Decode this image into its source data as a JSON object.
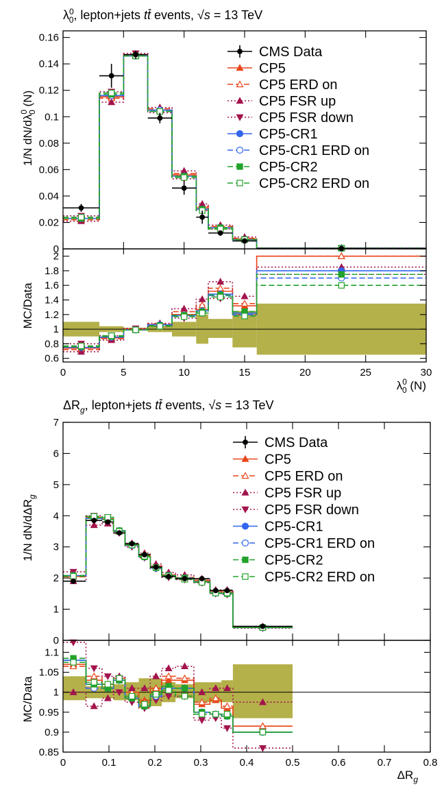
{
  "colors": {
    "data": "#000000",
    "cp5": "#e8471b",
    "fsr": "#a3144d",
    "cr1": "#3366ee",
    "cr2": "#22a22a",
    "band": "#b4b04a"
  },
  "legend": [
    {
      "key": "data",
      "label": "CMS Data"
    },
    {
      "key": "cp5",
      "label": "CP5"
    },
    {
      "key": "cp5_erd",
      "label": "CP5 ERD on"
    },
    {
      "key": "fsr_up",
      "label": "CP5 FSR up"
    },
    {
      "key": "fsr_down",
      "label": "CP5 FSR down"
    },
    {
      "key": "cr1",
      "label": "CP5-CR1"
    },
    {
      "key": "cr1_erd",
      "label": "CP5-CR1 ERD on"
    },
    {
      "key": "cr2",
      "label": "CP5-CR2"
    },
    {
      "key": "cr2_erd",
      "label": "CP5-CR2 ERD on"
    }
  ],
  "chart_data": [
    {
      "type": "line",
      "title": "λ₀⁰, lepton+jets tt̄ events, √s = 13 TeV",
      "title_parts": {
        "obs": "λ",
        "sup": "0",
        "sub": "0",
        "mid": ", lepton+jets ",
        "tt": "tt",
        "events": " events, ",
        "sqrt": "√",
        "s": "s",
        "energy": " = 13 TeV"
      },
      "ylabel": "1/N dN/dλ₀⁰ (N)",
      "ylabel_ratio": "MC/Data",
      "xlabel": "λ₀⁰ (N)",
      "xlabel_parts": {
        "obs": "λ",
        "sup": "0",
        "sub": "0",
        "unit": " (N)"
      },
      "ylabel_parts": {
        "pre": "1/N dN/dλ",
        "sup": "0",
        "sub": "0",
        "unit": " (N)"
      },
      "xlim": [
        0,
        30
      ],
      "ylim": [
        0,
        0.165
      ],
      "ratio_ylim": [
        0.55,
        2.1
      ],
      "x_ticks": [
        0,
        5,
        10,
        15,
        20,
        25,
        30
      ],
      "x_tick_labels": [
        "0",
        "5",
        "10",
        "15",
        "20",
        "25",
        "30"
      ],
      "y_ticks": [
        0,
        0.02,
        0.04,
        0.06,
        0.08,
        0.1,
        0.12,
        0.14,
        0.16
      ],
      "y_tick_labels": [
        "0",
        "0.02",
        "0.04",
        "0.06",
        "0.08",
        "0.1",
        "0.12",
        "0.14",
        "0.16"
      ],
      "ratio_ticks": [
        0.6,
        0.8,
        1,
        1.2,
        1.4,
        1.6,
        1.8,
        2
      ],
      "ratio_tick_labels": [
        "0.6",
        "0.8",
        "1",
        "1.2",
        "1.4",
        "1.6",
        "1.8",
        "2"
      ],
      "bin_edges": [
        0,
        3,
        5,
        7,
        9,
        11,
        12,
        14,
        16,
        30
      ],
      "data": {
        "x": [
          1.5,
          4,
          6,
          8,
          10,
          11.5,
          13,
          15,
          23
        ],
        "values": [
          0.031,
          0.131,
          0.147,
          0.099,
          0.046,
          0.024,
          0.012,
          0.006,
          0.0003
        ],
        "errors": [
          0.003,
          0.009,
          0.003,
          0.004,
          0.005,
          0.005,
          0.002,
          0.0015,
          0.0002
        ]
      },
      "series": [
        {
          "key": "cp5",
          "name": "CP5",
          "values": [
            0.023,
            0.115,
            0.147,
            0.105,
            0.056,
            0.031,
            0.016,
            0.0075,
            0.0006
          ],
          "ratio": [
            0.74,
            0.88,
            1.0,
            1.06,
            1.2,
            1.27,
            1.52,
            1.32,
            2.0
          ]
        },
        {
          "key": "cp5_erd",
          "name": "CP5 ERD on",
          "values": [
            0.022,
            0.114,
            0.147,
            0.106,
            0.057,
            0.032,
            0.017,
            0.008,
            0.0006
          ],
          "ratio": [
            0.72,
            0.87,
            1.0,
            1.07,
            1.24,
            1.33,
            1.56,
            1.35,
            2.0
          ]
        },
        {
          "key": "fsr_up",
          "name": "CP5 FSR up",
          "values": [
            0.021,
            0.111,
            0.146,
            0.107,
            0.059,
            0.034,
            0.018,
            0.009,
            0.0007
          ],
          "ratio": [
            0.69,
            0.85,
            0.99,
            1.08,
            1.28,
            1.41,
            1.65,
            1.45,
            1.85
          ]
        },
        {
          "key": "fsr_down",
          "name": "CP5 FSR down",
          "values": [
            0.025,
            0.119,
            0.148,
            0.103,
            0.053,
            0.029,
            0.015,
            0.007,
            0.0005
          ],
          "ratio": [
            0.8,
            0.91,
            1.01,
            1.04,
            1.15,
            1.22,
            1.42,
            1.2,
            1.75
          ]
        },
        {
          "key": "cr1",
          "name": "CP5-CR1",
          "values": [
            0.023,
            0.116,
            0.146,
            0.105,
            0.055,
            0.03,
            0.016,
            0.007,
            0.0005
          ],
          "ratio": [
            0.75,
            0.89,
            0.99,
            1.06,
            1.19,
            1.25,
            1.48,
            1.22,
            1.8
          ]
        },
        {
          "key": "cr1_erd",
          "name": "CP5-CR1 ERD on",
          "values": [
            0.023,
            0.116,
            0.146,
            0.105,
            0.055,
            0.03,
            0.016,
            0.007,
            0.0005
          ],
          "ratio": [
            0.76,
            0.89,
            0.99,
            1.05,
            1.18,
            1.24,
            1.46,
            1.2,
            1.7
          ]
        },
        {
          "key": "cr2",
          "name": "CP5-CR2",
          "values": [
            0.023,
            0.117,
            0.146,
            0.104,
            0.055,
            0.03,
            0.016,
            0.007,
            0.0005
          ],
          "ratio": [
            0.76,
            0.9,
            0.99,
            1.05,
            1.19,
            1.24,
            1.47,
            1.24,
            1.75
          ]
        },
        {
          "key": "cr2_erd",
          "name": "CP5-CR2 ERD on",
          "values": [
            0.024,
            0.118,
            0.146,
            0.104,
            0.054,
            0.029,
            0.015,
            0.007,
            0.0005
          ],
          "ratio": [
            0.77,
            0.91,
            0.99,
            1.04,
            1.17,
            1.22,
            1.44,
            1.18,
            1.6
          ]
        }
      ],
      "uncertainty_band": {
        "lo": [
          0.9,
          0.96,
          0.98,
          0.96,
          0.9,
          0.8,
          0.88,
          0.75,
          0.65
        ],
        "hi": [
          1.1,
          1.04,
          1.02,
          1.04,
          1.1,
          1.2,
          1.14,
          1.25,
          1.35
        ]
      }
    },
    {
      "type": "line",
      "title": "ΔR_g, lepton+jets tt̄ events, √s = 13 TeV",
      "title_parts": {
        "obs": "ΔR",
        "sub": "g",
        "mid": ", lepton+jets ",
        "tt": "tt",
        "events": " events, ",
        "sqrt": "√",
        "s": "s",
        "energy": " = 13 TeV"
      },
      "ylabel": "1/N dN/dΔR_g",
      "ylabel_ratio": "MC/Data",
      "xlabel": "ΔR_g",
      "xlabel_parts": {
        "obs": "ΔR",
        "sub": "g"
      },
      "ylabel_parts": {
        "pre": "1/N dN/dΔR",
        "sub": "g"
      },
      "xlim": [
        0,
        0.8
      ],
      "ylim": [
        0,
        7
      ],
      "ratio_ylim": [
        0.85,
        1.13
      ],
      "x_ticks": [
        0,
        0.1,
        0.2,
        0.3,
        0.4,
        0.5,
        0.6,
        0.7,
        0.8
      ],
      "x_tick_labels": [
        "0",
        "0.1",
        "0.2",
        "0.3",
        "0.4",
        "0.5",
        "0.6",
        "0.7",
        "0.8"
      ],
      "y_ticks": [
        0,
        1,
        2,
        3,
        4,
        5,
        6,
        7
      ],
      "y_tick_labels": [
        "0",
        "1",
        "2",
        "3",
        "4",
        "5",
        "6",
        "7"
      ],
      "ratio_ticks": [
        0.85,
        0.9,
        0.95,
        1,
        1.05,
        1.1
      ],
      "ratio_tick_labels": [
        "0.85",
        "0.9",
        "0.95",
        "1",
        "1.05",
        "1.1"
      ],
      "bin_edges": [
        0,
        0.05,
        0.085,
        0.11,
        0.135,
        0.165,
        0.19,
        0.215,
        0.245,
        0.285,
        0.32,
        0.345,
        0.37,
        0.5
      ],
      "data": {
        "x": [
          0.0225,
          0.0675,
          0.0975,
          0.1225,
          0.15,
          0.1775,
          0.2025,
          0.23,
          0.265,
          0.3025,
          0.3325,
          0.3575,
          0.435
        ],
        "values": [
          1.9,
          3.85,
          3.8,
          3.45,
          3.1,
          2.75,
          2.35,
          2.05,
          1.98,
          1.98,
          1.6,
          1.6,
          0.45
        ],
        "errors": [
          0.04,
          0.08,
          0.08,
          0.07,
          0.06,
          0.06,
          0.05,
          0.05,
          0.05,
          0.05,
          0.05,
          0.05,
          0.02
        ]
      },
      "series": [
        {
          "key": "cp5",
          "name": "CP5",
          "values": [
            2.05,
            3.95,
            3.9,
            3.5,
            3.07,
            2.72,
            2.38,
            2.1,
            2.0,
            1.92,
            1.57,
            1.55,
            0.43
          ],
          "ratio": [
            1.07,
            1.03,
            1.02,
            1.03,
            1.0,
            0.98,
            1.01,
            1.03,
            1.03,
            0.97,
            0.98,
            0.96,
            0.915
          ]
        },
        {
          "key": "cp5_erd",
          "name": "CP5 ERD on",
          "values": [
            2.04,
            3.96,
            3.9,
            3.51,
            3.08,
            2.71,
            2.39,
            2.11,
            2.02,
            1.93,
            1.58,
            1.56,
            0.43
          ],
          "ratio": [
            1.065,
            1.04,
            1.02,
            1.035,
            1.0,
            0.975,
            1.01,
            1.04,
            1.035,
            0.975,
            0.985,
            0.965,
            0.915
          ]
        },
        {
          "key": "fsr_up",
          "name": "CP5 FSR up",
          "values": [
            1.9,
            3.7,
            3.75,
            3.5,
            3.12,
            2.8,
            2.45,
            2.18,
            2.1,
            1.98,
            1.62,
            1.62,
            0.44
          ],
          "ratio": [
            1.0,
            0.965,
            0.985,
            1.04,
            1.01,
            1.01,
            1.04,
            1.06,
            1.065,
            1.0,
            1.01,
            1.01,
            0.975
          ]
        },
        {
          "key": "fsr_down",
          "name": "CP5 FSR down",
          "values": [
            2.2,
            4.0,
            3.95,
            3.45,
            3.0,
            2.65,
            2.3,
            2.02,
            1.95,
            1.85,
            1.5,
            1.47,
            0.39
          ],
          "ratio": [
            1.125,
            1.06,
            1.04,
            1.0,
            0.975,
            0.96,
            0.98,
            0.99,
            0.99,
            0.93,
            0.935,
            0.91,
            0.86
          ]
        },
        {
          "key": "cr1",
          "name": "CP5-CR1",
          "values": [
            2.08,
            3.92,
            3.88,
            3.52,
            3.05,
            2.68,
            2.32,
            2.08,
            2.0,
            1.88,
            1.52,
            1.5,
            0.41
          ],
          "ratio": [
            1.08,
            1.02,
            1.01,
            1.03,
            0.985,
            0.965,
            0.99,
            1.01,
            1.01,
            0.95,
            0.945,
            0.94,
            0.9
          ]
        },
        {
          "key": "cr1_erd",
          "name": "CP5-CR1 ERD on",
          "values": [
            2.08,
            3.92,
            3.88,
            3.52,
            3.05,
            2.68,
            2.32,
            2.08,
            2.0,
            1.88,
            1.52,
            1.5,
            0.41
          ],
          "ratio": [
            1.08,
            1.01,
            1.01,
            1.03,
            0.985,
            0.965,
            0.99,
            1.01,
            1.01,
            0.95,
            0.945,
            0.94,
            0.9
          ]
        },
        {
          "key": "cr2",
          "name": "CP5-CR2",
          "values": [
            2.08,
            3.93,
            3.88,
            3.52,
            3.06,
            2.68,
            2.33,
            2.08,
            2.0,
            1.88,
            1.52,
            1.5,
            0.41
          ],
          "ratio": [
            1.085,
            1.02,
            1.01,
            1.03,
            0.985,
            0.965,
            0.995,
            1.015,
            1.01,
            0.95,
            0.945,
            0.94,
            0.9
          ]
        },
        {
          "key": "cr2_erd",
          "name": "CP5-CR2 ERD on",
          "values": [
            2.06,
            3.98,
            3.95,
            3.5,
            3.06,
            2.7,
            2.34,
            2.07,
            1.96,
            1.86,
            1.52,
            1.52,
            0.41
          ],
          "ratio": [
            1.075,
            1.025,
            1.02,
            1.035,
            0.99,
            0.97,
            0.995,
            1.005,
            0.99,
            0.945,
            0.945,
            0.945,
            0.9
          ]
        }
      ],
      "uncertainty_band": {
        "lo": [
          0.98,
          0.985,
          0.985,
          0.98,
          0.98,
          0.96,
          0.965,
          0.975,
          0.985,
          0.975,
          0.975,
          0.975,
          0.935
        ],
        "hi": [
          1.04,
          1.015,
          1.015,
          1.02,
          1.025,
          1.035,
          1.035,
          1.025,
          1.02,
          1.025,
          1.025,
          1.03,
          1.07
        ]
      }
    }
  ]
}
